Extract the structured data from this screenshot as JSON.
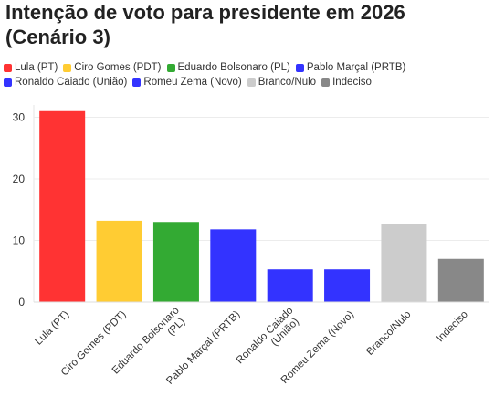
{
  "title": "Intenção de voto para presidente em 2026\n(Cenário 3)",
  "legend": [
    {
      "label": "Lula (PT)",
      "color": "#ff3333"
    },
    {
      "label": "Ciro Gomes (PDT)",
      "color": "#ffcc33"
    },
    {
      "label": "Eduardo Bolsonaro (PL)",
      "color": "#33aa33"
    },
    {
      "label": "Pablo Marçal (PRTB)",
      "color": "#3333ff"
    },
    {
      "label": "Ronaldo Caiado (União)",
      "color": "#3333ff"
    },
    {
      "label": "Romeu Zema (Novo)",
      "color": "#3333ff"
    },
    {
      "label": "Branco/Nulo",
      "color": "#cccccc"
    },
    {
      "label": "Indeciso",
      "color": "#888888"
    }
  ],
  "chart_data": {
    "type": "bar",
    "categories": [
      "Lula (PT)",
      "Ciro Gomes (PDT)",
      "Eduardo Bolsonaro (PL)",
      "Pablo Marçal (PRTB)",
      "Ronaldo Caiado (União)",
      "Romeu Zema (Novo)",
      "Branco/Nulo",
      "Indeciso"
    ],
    "values": [
      31,
      13.2,
      13,
      11.8,
      5.3,
      5.3,
      12.7,
      7
    ],
    "colors": [
      "#ff3333",
      "#ffcc33",
      "#33aa33",
      "#3333ff",
      "#3333ff",
      "#3333ff",
      "#cccccc",
      "#888888"
    ],
    "yticks": [
      0,
      10,
      20,
      30
    ],
    "ylim": [
      0,
      32
    ],
    "grid": true,
    "legend_position": "top-left"
  }
}
